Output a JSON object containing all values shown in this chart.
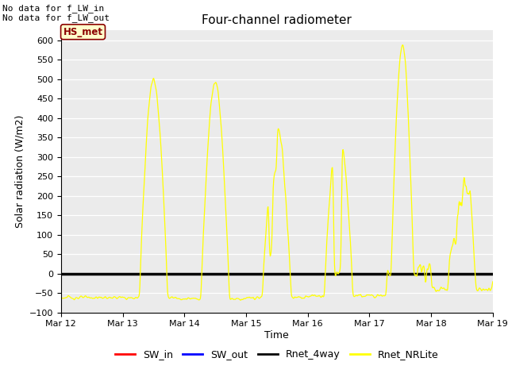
{
  "title": "Four-channel radiometer",
  "ylabel": "Solar radiation (W/m2)",
  "xlabel": "Time",
  "annotation_text": "No data for f_LW_in\nNo data for f_LW_out",
  "legend_label": "HS_met",
  "ylim": [
    -100,
    625
  ],
  "yticks": [
    -100,
    -50,
    0,
    50,
    100,
    150,
    200,
    250,
    300,
    350,
    400,
    450,
    500,
    550,
    600
  ],
  "xlim": [
    0,
    7
  ],
  "xtick_positions": [
    0,
    1,
    2,
    3,
    4,
    5,
    6,
    7
  ],
  "xtick_labels": [
    "Mar 12",
    "Mar 13",
    "Mar 14",
    "Mar 15",
    "Mar 16",
    "Mar 17",
    "Mar 18",
    "Mar 19"
  ],
  "bg_color": "#ebebeb",
  "line_color_nrlite": "#ffff00",
  "line_color_rnet4way": "#000000",
  "line_color_swin": "#ff0000",
  "line_color_swout": "#0000ff",
  "legend_entries": [
    {
      "label": "SW_in",
      "color": "#ff0000"
    },
    {
      "label": "SW_out",
      "color": "#0000ff"
    },
    {
      "label": "Rnet_4way",
      "color": "#000000"
    },
    {
      "label": "Rnet_NRLite",
      "color": "#ffff00"
    }
  ]
}
